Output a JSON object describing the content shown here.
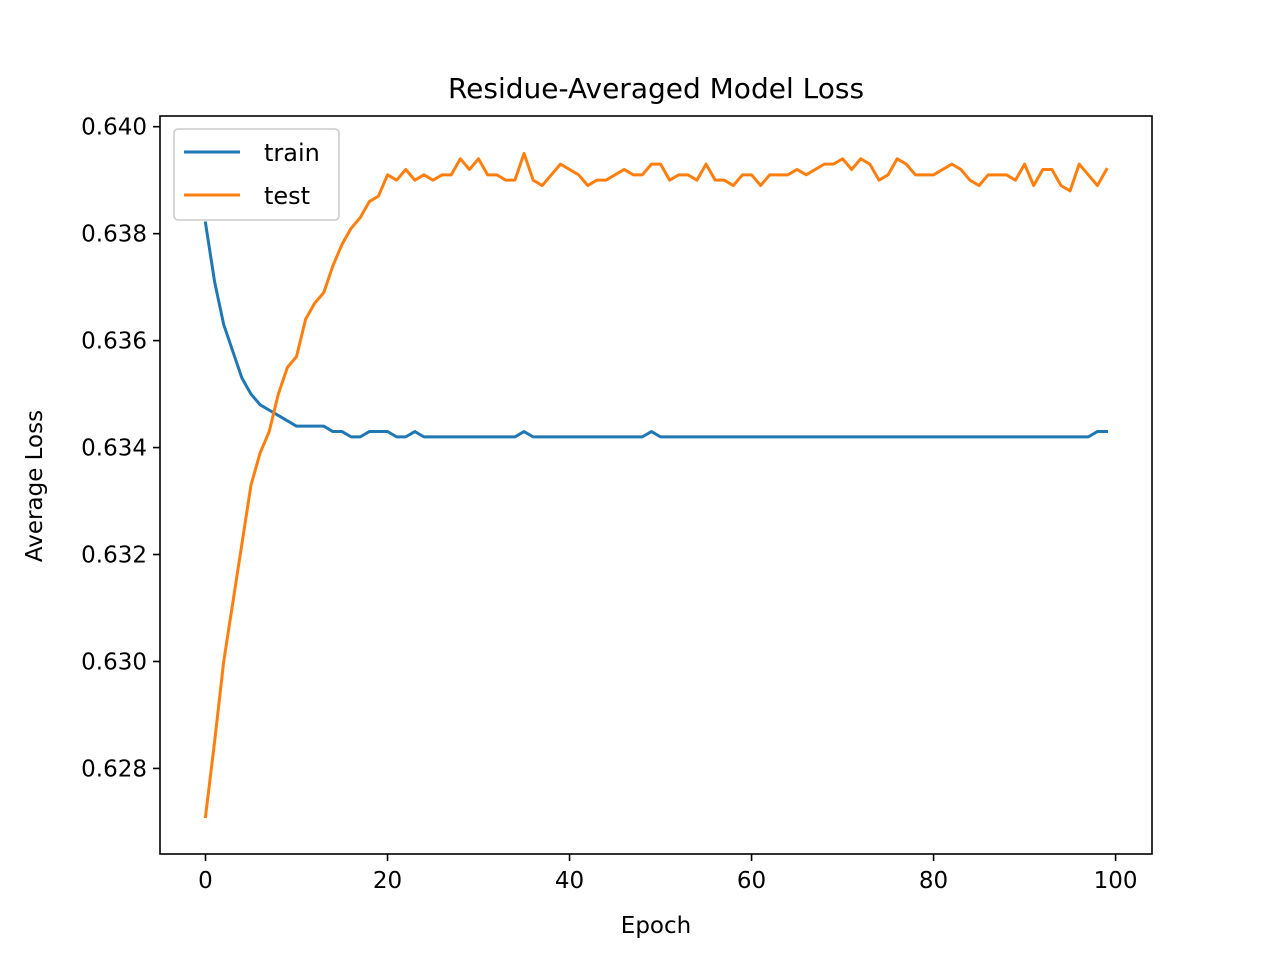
{
  "chart_data": {
    "type": "line",
    "title": "Residue-Averaged Model Loss",
    "xlabel": "Epoch",
    "ylabel": "Average Loss",
    "xlim": [
      -5,
      104
    ],
    "ylim": [
      0.6264,
      0.6402
    ],
    "xticks": [
      0,
      20,
      40,
      60,
      80,
      100
    ],
    "xtick_labels": [
      "0",
      "20",
      "40",
      "60",
      "80",
      "100"
    ],
    "yticks": [
      0.628,
      0.63,
      0.632,
      0.634,
      0.636,
      0.638,
      0.64
    ],
    "ytick_labels": [
      "0.628",
      "0.630",
      "0.632",
      "0.634",
      "0.636",
      "0.638",
      "0.640"
    ],
    "grid": false,
    "legend_position": "upper left",
    "series": [
      {
        "name": "train",
        "color": "#1f77b4",
        "x": [
          0,
          1,
          2,
          3,
          4,
          5,
          6,
          7,
          8,
          9,
          10,
          11,
          12,
          13,
          14,
          15,
          16,
          17,
          18,
          19,
          20,
          21,
          22,
          23,
          24,
          25,
          26,
          27,
          28,
          29,
          30,
          31,
          32,
          33,
          34,
          35,
          36,
          37,
          38,
          39,
          40,
          41,
          42,
          43,
          44,
          45,
          46,
          47,
          48,
          49,
          50,
          51,
          52,
          53,
          54,
          55,
          56,
          57,
          58,
          59,
          60,
          61,
          62,
          63,
          64,
          65,
          66,
          67,
          68,
          69,
          70,
          71,
          72,
          73,
          74,
          75,
          76,
          77,
          78,
          79,
          80,
          81,
          82,
          83,
          84,
          85,
          86,
          87,
          88,
          89,
          90,
          91,
          92,
          93,
          94,
          95,
          96,
          97,
          98,
          99
        ],
        "values": [
          0.6382,
          0.6371,
          0.6363,
          0.6358,
          0.6353,
          0.635,
          0.6348,
          0.6347,
          0.6346,
          0.6345,
          0.6344,
          0.6344,
          0.6344,
          0.6344,
          0.6343,
          0.6343,
          0.6342,
          0.6342,
          0.6343,
          0.6343,
          0.6343,
          0.6342,
          0.6342,
          0.6343,
          0.6342,
          0.6342,
          0.6342,
          0.6342,
          0.6342,
          0.6342,
          0.6342,
          0.6342,
          0.6342,
          0.6342,
          0.6342,
          0.6343,
          0.6342,
          0.6342,
          0.6342,
          0.6342,
          0.6342,
          0.6342,
          0.6342,
          0.6342,
          0.6342,
          0.6342,
          0.6342,
          0.6342,
          0.6342,
          0.6343,
          0.6342,
          0.6342,
          0.6342,
          0.6342,
          0.6342,
          0.6342,
          0.6342,
          0.6342,
          0.6342,
          0.6342,
          0.6342,
          0.6342,
          0.6342,
          0.6342,
          0.6342,
          0.6342,
          0.6342,
          0.6342,
          0.6342,
          0.6342,
          0.6342,
          0.6342,
          0.6342,
          0.6342,
          0.6342,
          0.6342,
          0.6342,
          0.6342,
          0.6342,
          0.6342,
          0.6342,
          0.6342,
          0.6342,
          0.6342,
          0.6342,
          0.6342,
          0.6342,
          0.6342,
          0.6342,
          0.6342,
          0.6342,
          0.6342,
          0.6342,
          0.6342,
          0.6342,
          0.6342,
          0.6342,
          0.6342,
          0.6343,
          0.6343
        ]
      },
      {
        "name": "test",
        "color": "#ff7f0e",
        "x": [
          0,
          1,
          2,
          3,
          4,
          5,
          6,
          7,
          8,
          9,
          10,
          11,
          12,
          13,
          14,
          15,
          16,
          17,
          18,
          19,
          20,
          21,
          22,
          23,
          24,
          25,
          26,
          27,
          28,
          29,
          30,
          31,
          32,
          33,
          34,
          35,
          36,
          37,
          38,
          39,
          40,
          41,
          42,
          43,
          44,
          45,
          46,
          47,
          48,
          49,
          50,
          51,
          52,
          53,
          54,
          55,
          56,
          57,
          58,
          59,
          60,
          61,
          62,
          63,
          64,
          65,
          66,
          67,
          68,
          69,
          70,
          71,
          72,
          73,
          74,
          75,
          76,
          77,
          78,
          79,
          80,
          81,
          82,
          83,
          84,
          85,
          86,
          87,
          88,
          89,
          90,
          91,
          92,
          93,
          94,
          95,
          96,
          97,
          98,
          99
        ],
        "values": [
          0.6271,
          0.6285,
          0.63,
          0.6311,
          0.6322,
          0.6333,
          0.6339,
          0.6343,
          0.635,
          0.6355,
          0.6357,
          0.6364,
          0.6367,
          0.6369,
          0.6374,
          0.6378,
          0.6381,
          0.6383,
          0.6386,
          0.6387,
          0.6391,
          0.639,
          0.6392,
          0.639,
          0.6391,
          0.639,
          0.6391,
          0.6391,
          0.6394,
          0.6392,
          0.6394,
          0.6391,
          0.6391,
          0.639,
          0.639,
          0.6395,
          0.639,
          0.6389,
          0.6391,
          0.6393,
          0.6392,
          0.6391,
          0.6389,
          0.639,
          0.639,
          0.6391,
          0.6392,
          0.6391,
          0.6391,
          0.6393,
          0.6393,
          0.639,
          0.6391,
          0.6391,
          0.639,
          0.6393,
          0.639,
          0.639,
          0.6389,
          0.6391,
          0.6391,
          0.6389,
          0.6391,
          0.6391,
          0.6391,
          0.6392,
          0.6391,
          0.6392,
          0.6393,
          0.6393,
          0.6394,
          0.6392,
          0.6394,
          0.6393,
          0.639,
          0.6391,
          0.6394,
          0.6393,
          0.6391,
          0.6391,
          0.6391,
          0.6392,
          0.6393,
          0.6392,
          0.639,
          0.6389,
          0.6391,
          0.6391,
          0.6391,
          0.639,
          0.6393,
          0.6389,
          0.6392,
          0.6392,
          0.6389,
          0.6388,
          0.6393,
          0.6391,
          0.6389,
          0.6392
        ]
      }
    ]
  }
}
